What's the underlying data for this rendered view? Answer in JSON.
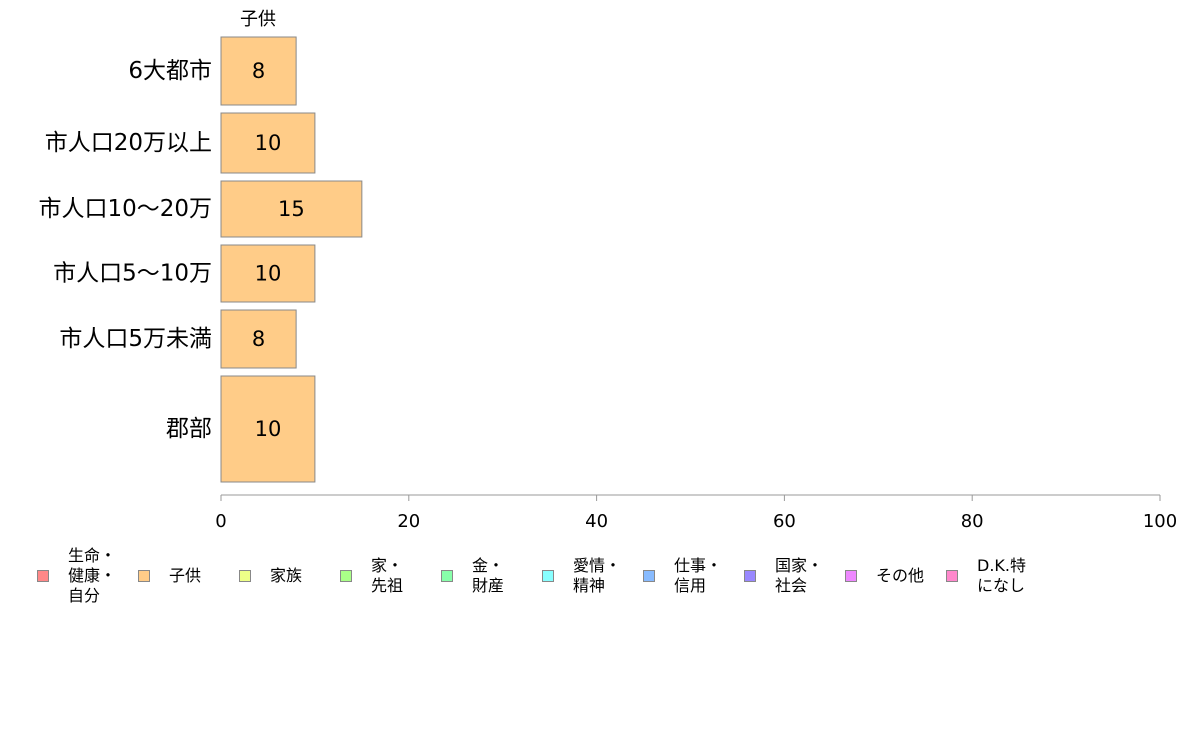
{
  "chart_data": {
    "type": "bar",
    "orientation": "horizontal",
    "series_label": "子供",
    "categories": [
      "6大都市",
      "市人口20万以上",
      "市人口10〜20万",
      "市人口5〜10万",
      "市人口5万未満",
      "郡部"
    ],
    "values": [
      8,
      10,
      15,
      10,
      8,
      10
    ],
    "value_labels": [
      "8",
      "10",
      "15",
      "10",
      "8",
      "10"
    ],
    "xlim": [
      0,
      100
    ],
    "xticks": [
      "0",
      "20",
      "40",
      "60",
      "80",
      "100"
    ],
    "bar_color": "#FFCC88",
    "bar_edge_color": "#888888",
    "axis_color": "#999999",
    "grid": false,
    "legend_position": "bottom",
    "legend": [
      {
        "label": "生命・\n健康・\n自分",
        "color": "#FF8888"
      },
      {
        "label": "子供",
        "color": "#FFCC88"
      },
      {
        "label": "家族",
        "color": "#EEFF88"
      },
      {
        "label": "家・\n先祖",
        "color": "#AAFF88"
      },
      {
        "label": "金・\n財産",
        "color": "#88FFAA"
      },
      {
        "label": "愛情・\n精神",
        "color": "#88FFFF"
      },
      {
        "label": "仕事・\n信用",
        "color": "#88BBFF"
      },
      {
        "label": "国家・\n社会",
        "color": "#9988FF"
      },
      {
        "label": "その他",
        "color": "#EE88FF"
      },
      {
        "label": "D.K.特\nになし",
        "color": "#FF88CC"
      }
    ]
  }
}
